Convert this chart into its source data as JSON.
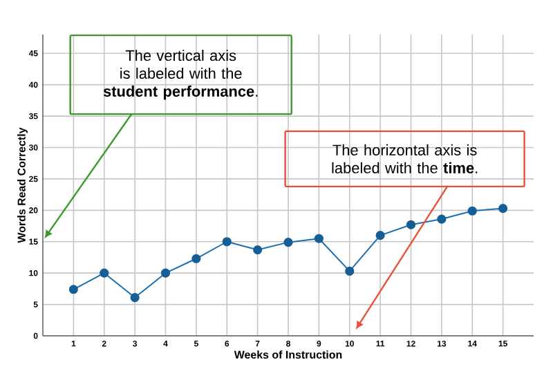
{
  "chart_data": {
    "type": "line",
    "xlabel": "Weeks of Instruction",
    "ylabel": "Words Read Correctly",
    "x": [
      1,
      2,
      3,
      4,
      5,
      6,
      7,
      8,
      9,
      10,
      11,
      12,
      13,
      14,
      15
    ],
    "values": [
      7.4,
      10,
      6.1,
      10,
      12.3,
      15,
      13.7,
      14.9,
      15.5,
      10.3,
      16,
      17.7,
      18.6,
      19.9,
      20.3
    ],
    "color": "#1a6fb0",
    "marker": "circle",
    "grid": true,
    "xlim": [
      0,
      16
    ],
    "ylim": [
      0,
      48
    ],
    "xticks": [
      1,
      2,
      3,
      4,
      5,
      6,
      7,
      8,
      9,
      10,
      11,
      12,
      13,
      14,
      15
    ],
    "yticks": [
      0,
      5,
      10,
      15,
      20,
      25,
      30,
      35,
      40,
      45
    ],
    "annotations": [
      "The vertical axis is labeled with the **student performance**.",
      "The horizontal axis is labeled with the **time**."
    ]
  }
}
